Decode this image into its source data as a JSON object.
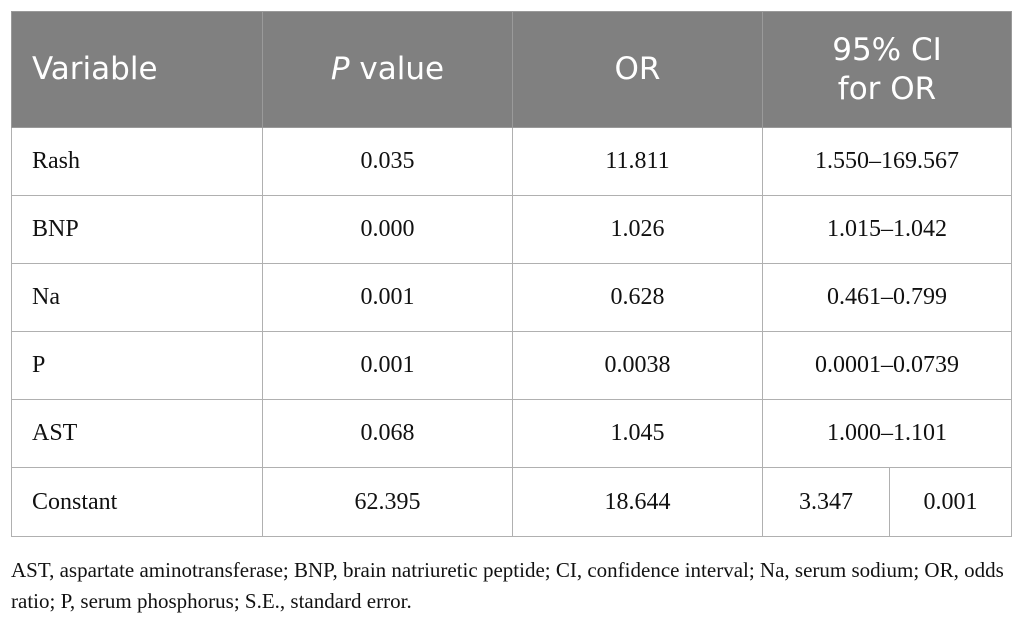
{
  "table": {
    "headers": {
      "variable": "Variable",
      "p_value_italic": "P",
      "p_value_rest": " value",
      "or": "OR",
      "ci_line1": "95% CI",
      "ci_line2": "for OR"
    },
    "rows": [
      {
        "variable": "Rash",
        "p_value": "0.035",
        "or": "11.811",
        "ci": "1.550–169.567"
      },
      {
        "variable": "BNP",
        "p_value": "0.000",
        "or": "1.026",
        "ci": "1.015–1.042"
      },
      {
        "variable": "Na",
        "p_value": "0.001",
        "or": "0.628",
        "ci": "0.461–0.799"
      },
      {
        "variable": "P",
        "p_value": "0.001",
        "or": "0.0038",
        "ci": "0.0001–0.0739"
      },
      {
        "variable": "AST",
        "p_value": "0.068",
        "or": "1.045",
        "ci": "1.000–1.101"
      }
    ],
    "constant_row": {
      "variable": "Constant",
      "p_value": "62.395",
      "or": "18.644",
      "ci_a": "3.347",
      "ci_b": "0.001"
    }
  },
  "footnote": "AST, aspartate aminotransferase; BNP, brain natriuretic peptide; CI, confidence interval; Na, serum sodium; OR, odds ratio; P, serum phosphorus; S.E., standard error."
}
